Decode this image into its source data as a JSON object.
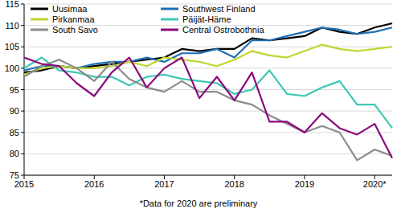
{
  "chart_data": {
    "type": "line",
    "annotations": [
      "*Data for 2020 are preliminary"
    ],
    "x": [
      2015,
      2015.25,
      2015.5,
      2015.75,
      2016,
      2016.25,
      2016.5,
      2016.75,
      2017,
      2017.25,
      2017.5,
      2017.75,
      2018,
      2018.25,
      2018.5,
      2018.75,
      2019,
      2019.25,
      2019.5,
      2019.75,
      2020,
      2020.25
    ],
    "xlim": [
      2015,
      2020.25
    ],
    "xticks": [
      2015,
      2016,
      2017,
      2018,
      2019,
      {
        "value": 2020,
        "label": "2020*"
      }
    ],
    "ylim": [
      75,
      115
    ],
    "yticks": [
      75,
      80,
      85,
      90,
      95,
      100,
      105,
      110,
      115
    ],
    "grid": true,
    "legend": "top-left",
    "series": [
      {
        "name": "Uusimaa",
        "color": "#000000",
        "values": [
          99,
          99.5,
          100.5,
          100,
          100.5,
          101,
          101.5,
          102,
          102.5,
          104.5,
          104,
          104.5,
          104.5,
          107,
          106.5,
          107,
          107.5,
          109.5,
          108.5,
          108,
          109.5,
          110.5
        ]
      },
      {
        "name": "Southwest Finland",
        "color": "#1f6fb4",
        "values": [
          99.5,
          100.5,
          100.5,
          100,
          101,
          101.5,
          101.5,
          102.5,
          101.5,
          103.5,
          103.5,
          104.5,
          102.5,
          106.5,
          106.5,
          107.5,
          108.5,
          109.5,
          109,
          108,
          108.5,
          109.5
        ]
      },
      {
        "name": "Pirkanmaa",
        "color": "#c3d531",
        "values": [
          98.5,
          100,
          100.5,
          100,
          100,
          100.5,
          101.5,
          100.5,
          102.5,
          102,
          101.5,
          100.5,
          102,
          104,
          103,
          102.5,
          104,
          105.5,
          104.5,
          104,
          104.5,
          105
        ]
      },
      {
        "name": "Päijät-Häme",
        "color": "#3ec7b3",
        "values": [
          100,
          102.5,
          99.5,
          99,
          98,
          98,
          96,
          98,
          98.5,
          97.5,
          97,
          96.5,
          94,
          95,
          99.5,
          94,
          93.5,
          95.5,
          97,
          91.5,
          91.5,
          86
        ]
      },
      {
        "name": "South Savo",
        "color": "#8c8c8c",
        "values": [
          98,
          100.5,
          102,
          100,
          97,
          101.5,
          97.5,
          95.5,
          94.5,
          97,
          94.5,
          94.5,
          92.5,
          91.5,
          89,
          87,
          85,
          86.5,
          85,
          78.5,
          81,
          79.5
        ]
      },
      {
        "name": "Central Ostrobothnia",
        "color": "#8a0a7d",
        "values": [
          102.5,
          101,
          100.5,
          96.5,
          93.5,
          99,
          102.5,
          95.5,
          100,
          102.5,
          93,
          98,
          92.5,
          99,
          87.5,
          87.5,
          85,
          89.5,
          86,
          84.5,
          87,
          79
        ]
      }
    ]
  }
}
